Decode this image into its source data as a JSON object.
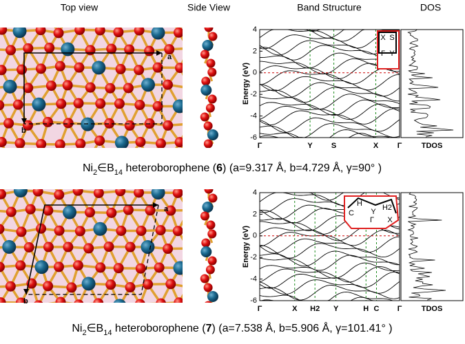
{
  "headers": [
    "Top view",
    "Side View",
    "Band Structure",
    "DOS"
  ],
  "panels": [
    {
      "lattice": [
        "a",
        "b"
      ],
      "band": {
        "ylabel": "Energy (eV)",
        "ylim": [
          -6,
          4
        ],
        "yticks": [
          -6,
          -4,
          -2,
          0,
          2,
          4
        ],
        "kpoints": [
          "Γ",
          "Y",
          "S",
          "X",
          "Γ"
        ],
        "bz": [
          "X",
          "S",
          "Γ",
          "Y"
        ],
        "dos": "TDOS"
      },
      "caption": [
        "Ni",
        "2",
        "∈B",
        "14",
        " heteroborophene (",
        "6",
        ") (a=9.317 Å, b=4.729 Å, γ=90° )"
      ]
    },
    {
      "lattice": [
        "a",
        "b"
      ],
      "band": {
        "ylabel": "Energy (eV)",
        "ylim": [
          -6,
          4
        ],
        "yticks": [
          -6,
          -4,
          -2,
          0,
          2,
          4
        ],
        "kpoints": [
          "Γ",
          "X",
          "H2",
          "Y",
          "H",
          "C",
          "Γ"
        ],
        "bz": [
          "H",
          "Y",
          "H2",
          "C",
          "Γ",
          "X"
        ],
        "dos": "TDOS"
      },
      "caption": [
        "Ni",
        "2",
        "∈B",
        "14",
        " heteroborophene (",
        "7",
        ") (a=7.538 Å, b=5.906 Å, γ=101.41° )"
      ]
    }
  ]
}
